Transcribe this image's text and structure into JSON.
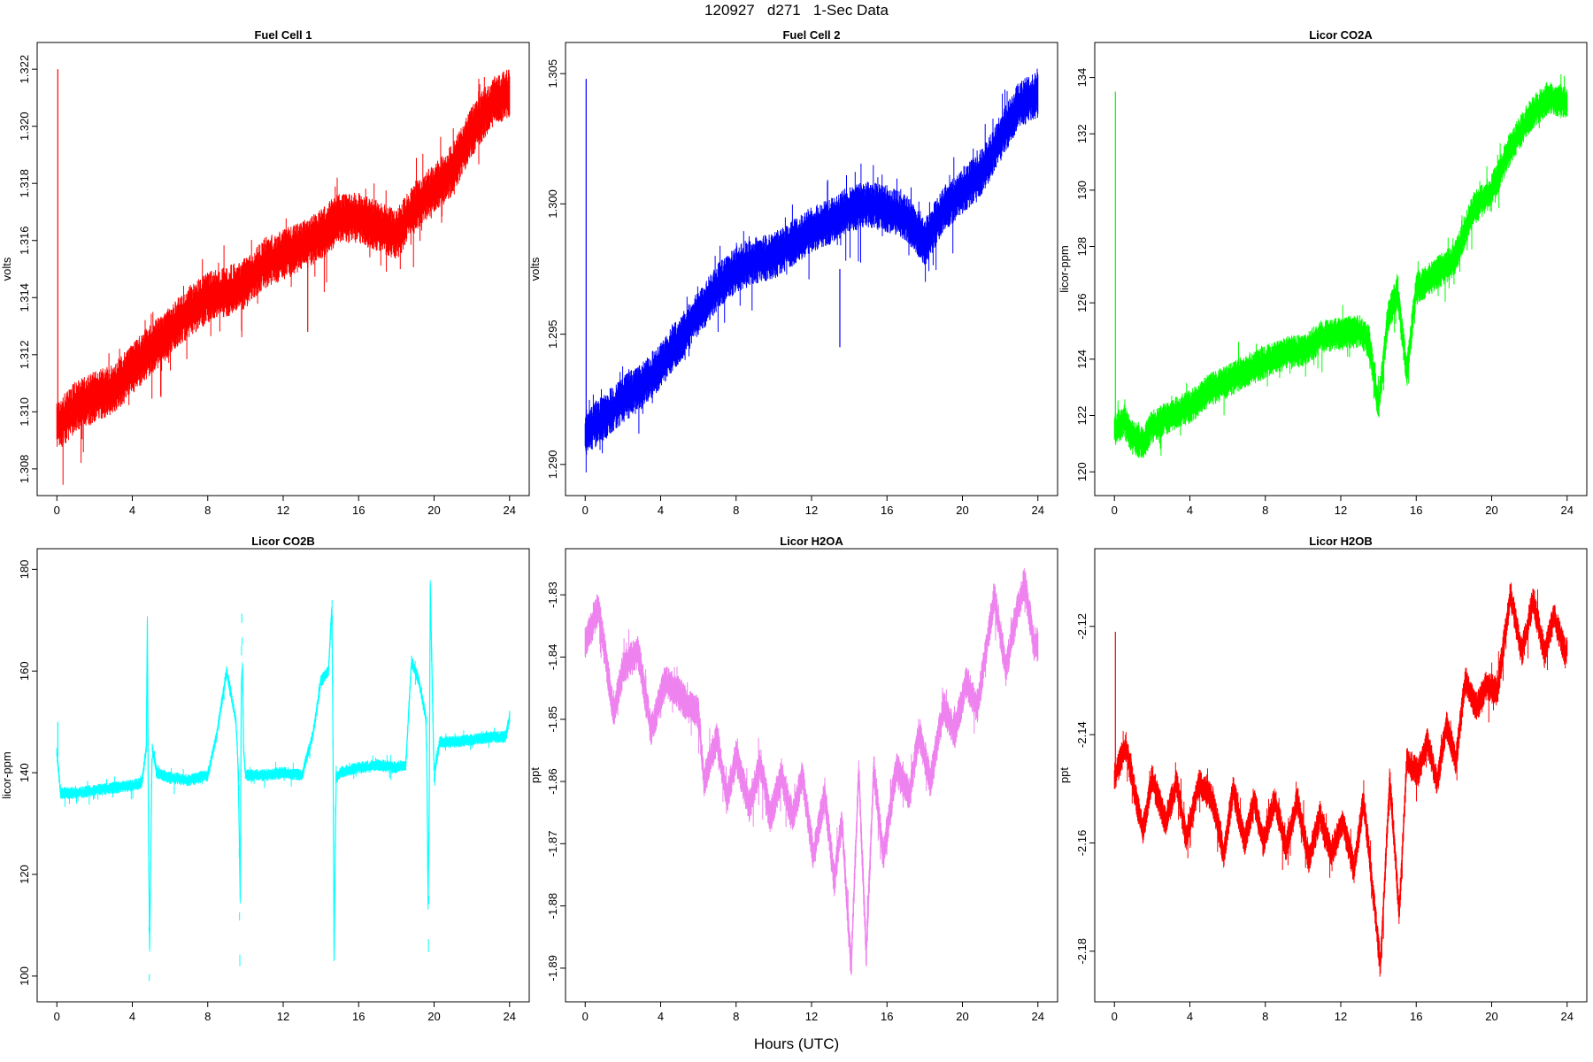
{
  "figure": {
    "title": "120927   d271   1-Sec Data",
    "xlabel": "Hours (UTC)"
  },
  "chart_data": [
    {
      "type": "line",
      "title": "Fuel Cell 1",
      "ylabel": "volts",
      "color": "#ff0000",
      "xlim": [
        0,
        24
      ],
      "ylim": [
        1.3077,
        1.3223
      ],
      "xticks": [
        0,
        4,
        8,
        12,
        16,
        20,
        24
      ],
      "yticks": [
        1.308,
        1.31,
        1.312,
        1.314,
        1.316,
        1.318,
        1.32,
        1.322
      ],
      "ytick_decimals": 3,
      "noise": 0.0009,
      "spikes": [
        {
          "x": 0.05,
          "lo": 1.3095,
          "hi": 1.322
        },
        {
          "x": 13.3,
          "lo": 1.3128,
          "hi": 1.3155
        }
      ],
      "x": [
        0,
        0.5,
        1,
        2,
        3,
        4,
        5,
        6,
        7,
        8,
        9,
        10,
        11,
        12,
        13,
        14,
        15,
        16,
        17,
        18,
        19,
        20,
        21,
        22,
        23,
        24
      ],
      "y": [
        1.3095,
        1.3098,
        1.3102,
        1.3105,
        1.3108,
        1.3115,
        1.3122,
        1.3128,
        1.3135,
        1.314,
        1.3142,
        1.3145,
        1.3152,
        1.3155,
        1.3158,
        1.3162,
        1.3168,
        1.3168,
        1.3165,
        1.3162,
        1.3172,
        1.3178,
        1.3185,
        1.3198,
        1.3208,
        1.3212
      ]
    },
    {
      "type": "line",
      "title": "Fuel Cell 2",
      "ylabel": "volts",
      "color": "#0000ff",
      "xlim": [
        0,
        24
      ],
      "ylim": [
        1.2895,
        1.3055
      ],
      "xticks": [
        0,
        4,
        8,
        12,
        16,
        20,
        24
      ],
      "yticks": [
        1.29,
        1.295,
        1.3,
        1.305
      ],
      "ytick_decimals": 3,
      "noise": 0.0009,
      "spikes": [
        {
          "x": 0.05,
          "lo": 1.2915,
          "hi": 1.3048
        },
        {
          "x": 13.5,
          "lo": 1.2945,
          "hi": 1.2975
        }
      ],
      "x": [
        0,
        0.5,
        1,
        2,
        3,
        4,
        5,
        6,
        7,
        8,
        9,
        10,
        11,
        12,
        13,
        14,
        15,
        16,
        17,
        18,
        19,
        20,
        21,
        22,
        23,
        24
      ],
      "y": [
        1.2912,
        1.2915,
        1.2918,
        1.2925,
        1.293,
        1.2938,
        1.2948,
        1.2958,
        1.2968,
        1.2975,
        1.2978,
        1.298,
        1.2985,
        1.299,
        1.2993,
        1.2998,
        1.3,
        1.2998,
        1.2995,
        1.2985,
        1.2998,
        1.3005,
        1.3012,
        1.3025,
        1.3038,
        1.3042
      ]
    },
    {
      "type": "line",
      "title": "Licor CO2A",
      "ylabel": "licor-ppm",
      "color": "#00ff00",
      "xlim": [
        0,
        24
      ],
      "ylim": [
        119.8,
        134.6
      ],
      "xticks": [
        0,
        4,
        8,
        12,
        16,
        20,
        24
      ],
      "yticks": [
        120,
        122,
        124,
        126,
        128,
        130,
        132,
        134
      ],
      "ytick_decimals": 0,
      "noise": 0.6,
      "spikes": [
        {
          "x": 0.05,
          "lo": 121.5,
          "hi": 133.5
        }
      ],
      "x": [
        0,
        0.5,
        1,
        1.5,
        2,
        3,
        4,
        5,
        6,
        7,
        8,
        9,
        10,
        11,
        12,
        13,
        13.5,
        14,
        14.5,
        15,
        15.5,
        16,
        17,
        18,
        19,
        20,
        21,
        22,
        23,
        24
      ],
      "y": [
        121.5,
        121.8,
        121.2,
        121.0,
        121.6,
        122.0,
        122.3,
        122.9,
        123.2,
        123.6,
        123.9,
        124.2,
        124.3,
        124.8,
        124.9,
        125.0,
        124.6,
        122.3,
        125.5,
        126.4,
        123.5,
        126.5,
        127.0,
        127.5,
        129.3,
        130.0,
        131.5,
        132.6,
        133.3,
        133.1
      ]
    },
    {
      "type": "line",
      "title": "Licor CO2B",
      "ylabel": "licor-ppm",
      "color": "#00ffff",
      "xlim": [
        0,
        24
      ],
      "ylim": [
        98.5,
        180.5
      ],
      "xticks": [
        0,
        4,
        8,
        12,
        16,
        20,
        24
      ],
      "yticks": [
        100,
        120,
        140,
        160,
        180
      ],
      "ytick_decimals": 0,
      "noise": 1.2,
      "spikes": [
        {
          "x": 0.05,
          "lo": 143,
          "hi": 150
        }
      ],
      "x": [
        0,
        0.2,
        1,
        2,
        3,
        4,
        4.5,
        4.75,
        4.8,
        4.9,
        5.0,
        5.05,
        5.3,
        6,
        7,
        8,
        8.5,
        9,
        9.5,
        9.65,
        9.7,
        9.8,
        9.9,
        10,
        11,
        12,
        13,
        13.6,
        14.0,
        14.4,
        14.6,
        14.7,
        14.8,
        14.85,
        15,
        16,
        17,
        18,
        18.5,
        18.8,
        19.2,
        19.6,
        19.7,
        19.8,
        20.0,
        20.1,
        20.3,
        21,
        22,
        23,
        23.8,
        24
      ],
      "y": [
        144,
        136,
        136,
        136.5,
        137,
        137.5,
        138,
        145,
        170,
        99,
        131,
        145,
        140,
        139,
        138.5,
        139.5,
        148,
        160,
        150,
        138,
        101,
        172,
        145,
        139.5,
        139.5,
        140,
        139.5,
        148,
        158,
        160,
        174,
        103,
        141,
        139,
        140,
        141,
        141.5,
        141,
        141.5,
        162,
        158,
        150,
        105,
        177,
        139,
        142,
        146,
        146,
        146.5,
        147,
        147,
        151
      ]
    },
    {
      "type": "line",
      "title": "Licor H2OA",
      "ylabel": "ppt",
      "color": "#ee82ee",
      "xlim": [
        0,
        24
      ],
      "ylim": [
        -1.8925,
        -1.8255
      ],
      "xticks": [
        0,
        4,
        8,
        12,
        16,
        20,
        24
      ],
      "yticks": [
        -1.89,
        -1.88,
        -1.87,
        -1.86,
        -1.85,
        -1.84,
        -1.83
      ],
      "ytick_decimals": 2,
      "noise": 0.0028,
      "spikes": [],
      "x": [
        0,
        0.7,
        1.5,
        2,
        2.8,
        3.5,
        4.2,
        5,
        5.5,
        6,
        6.3,
        7,
        7.5,
        8,
        8.7,
        9.3,
        9.8,
        10.4,
        11,
        11.5,
        12.1,
        12.7,
        13.2,
        13.6,
        14.1,
        14.5,
        14.9,
        15.3,
        15.8,
        16.5,
        17.2,
        17.7,
        18.3,
        19,
        19.6,
        20.2,
        20.8,
        21.2,
        21.7,
        22.3,
        22.8,
        23.3,
        23.8,
        24
      ],
      "y": [
        -1.838,
        -1.832,
        -1.849,
        -1.842,
        -1.839,
        -1.852,
        -1.844,
        -1.846,
        -1.848,
        -1.849,
        -1.86,
        -1.853,
        -1.863,
        -1.856,
        -1.864,
        -1.857,
        -1.866,
        -1.859,
        -1.866,
        -1.859,
        -1.872,
        -1.862,
        -1.876,
        -1.866,
        -1.89,
        -1.858,
        -1.888,
        -1.858,
        -1.872,
        -1.858,
        -1.862,
        -1.852,
        -1.86,
        -1.848,
        -1.852,
        -1.844,
        -1.848,
        -1.84,
        -1.83,
        -1.842,
        -1.834,
        -1.828,
        -1.838,
        -1.838
      ]
    },
    {
      "type": "line",
      "title": "Licor H2OB",
      "ylabel": "ppt",
      "color": "#ff0000",
      "xlim": [
        0,
        24
      ],
      "ylim": [
        -2.186,
        -2.109
      ],
      "xticks": [
        0,
        4,
        8,
        12,
        16,
        20,
        24
      ],
      "yticks": [
        -2.18,
        -2.16,
        -2.14,
        -2.12
      ],
      "ytick_decimals": 2,
      "noise": 0.0028,
      "spikes": [
        {
          "x": 0.05,
          "lo": -2.148,
          "hi": -2.121
        }
      ],
      "x": [
        0,
        0.6,
        1.5,
        2,
        2.7,
        3.3,
        3.8,
        4.5,
        5.2,
        5.8,
        6.3,
        6.9,
        7.4,
        7.9,
        8.5,
        9.1,
        9.7,
        10.3,
        10.9,
        11.5,
        12.1,
        12.7,
        13.2,
        13.6,
        14.1,
        14.6,
        15.1,
        15.5,
        16.1,
        16.6,
        17.1,
        17.6,
        18.1,
        18.6,
        19.2,
        19.7,
        20.3,
        21,
        21.6,
        22.2,
        22.8,
        23.3,
        23.9,
        24
      ],
      "y": [
        -2.148,
        -2.142,
        -2.158,
        -2.148,
        -2.156,
        -2.149,
        -2.159,
        -2.149,
        -2.152,
        -2.162,
        -2.15,
        -2.16,
        -2.152,
        -2.16,
        -2.152,
        -2.161,
        -2.152,
        -2.163,
        -2.155,
        -2.162,
        -2.156,
        -2.165,
        -2.152,
        -2.165,
        -2.183,
        -2.148,
        -2.173,
        -2.145,
        -2.147,
        -2.141,
        -2.149,
        -2.138,
        -2.145,
        -2.13,
        -2.135,
        -2.131,
        -2.132,
        -2.114,
        -2.125,
        -2.115,
        -2.125,
        -2.118,
        -2.125,
        -2.124
      ]
    }
  ]
}
